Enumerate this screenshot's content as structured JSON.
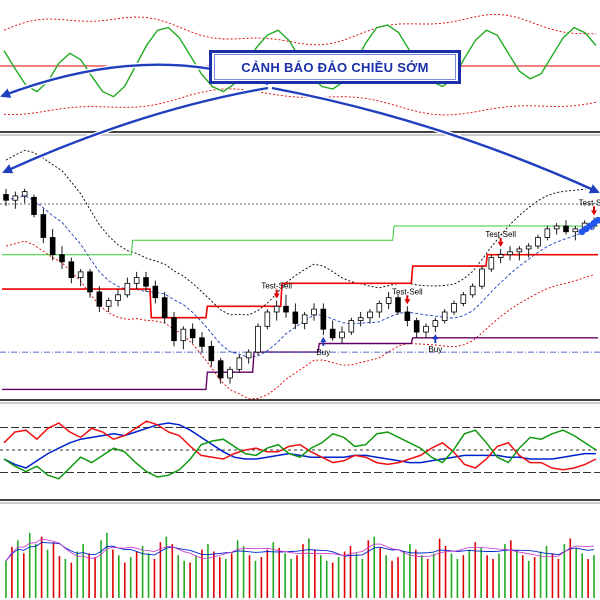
{
  "banner": {
    "text": "CẢNH BÁO ĐẢO CHIỀU SỚM"
  },
  "colors": {
    "oscillator_line": "#22aa22",
    "band_red": "#dd0000",
    "arrow_blue": "#1f3fbf",
    "bull_candle": "#ffffff",
    "bear_candle": "#000000",
    "support_line": "#ee0000",
    "resistance_line": "#33cc33",
    "trail_purple": "#660066",
    "osc_blue": "#0022cc",
    "osc_red": "#ee1111",
    "osc_green": "#119911",
    "vol_up": "#22aa22",
    "vol_down": "#dd0000"
  },
  "chart_data": [
    {
      "type": "line",
      "title": "",
      "series": [
        {
          "values": [
            62,
            48,
            35,
            30,
            38,
            52,
            60,
            55,
            42,
            30,
            26,
            34,
            50,
            66,
            78,
            80,
            72,
            58,
            44,
            34,
            30,
            36,
            50,
            64,
            74,
            78,
            70,
            56,
            42,
            34,
            32,
            38,
            52,
            68,
            80,
            82,
            76,
            62,
            48,
            38,
            34,
            40,
            56,
            70,
            78,
            74,
            60,
            46,
            40,
            44,
            58,
            72,
            80,
            76,
            66
          ]
        }
      ],
      "x_count": 55,
      "ylim": [
        0,
        100
      ],
      "band_upper": 78,
      "band_lower": 22,
      "midline": 50
    },
    {
      "type": "candlestick",
      "title": "",
      "candles": [
        {
          "o": 232,
          "h": 236,
          "l": 224,
          "c": 228
        },
        {
          "o": 228,
          "h": 234,
          "l": 222,
          "c": 231
        },
        {
          "o": 231,
          "h": 236,
          "l": 226,
          "c": 234
        },
        {
          "o": 230,
          "h": 232,
          "l": 216,
          "c": 218
        },
        {
          "o": 218,
          "h": 222,
          "l": 198,
          "c": 202
        },
        {
          "o": 202,
          "h": 208,
          "l": 186,
          "c": 190
        },
        {
          "o": 190,
          "h": 196,
          "l": 180,
          "c": 185
        },
        {
          "o": 185,
          "h": 188,
          "l": 170,
          "c": 174
        },
        {
          "o": 174,
          "h": 180,
          "l": 168,
          "c": 178
        },
        {
          "o": 178,
          "h": 180,
          "l": 160,
          "c": 164
        },
        {
          "o": 164,
          "h": 168,
          "l": 150,
          "c": 154
        },
        {
          "o": 154,
          "h": 160,
          "l": 150,
          "c": 158
        },
        {
          "o": 158,
          "h": 166,
          "l": 154,
          "c": 162
        },
        {
          "o": 162,
          "h": 174,
          "l": 160,
          "c": 170
        },
        {
          "o": 170,
          "h": 178,
          "l": 166,
          "c": 174
        },
        {
          "o": 174,
          "h": 178,
          "l": 164,
          "c": 168
        },
        {
          "o": 168,
          "h": 172,
          "l": 156,
          "c": 160
        },
        {
          "o": 160,
          "h": 164,
          "l": 142,
          "c": 146
        },
        {
          "o": 146,
          "h": 150,
          "l": 126,
          "c": 130
        },
        {
          "o": 130,
          "h": 140,
          "l": 124,
          "c": 138
        },
        {
          "o": 138,
          "h": 142,
          "l": 128,
          "c": 132
        },
        {
          "o": 132,
          "h": 136,
          "l": 122,
          "c": 126
        },
        {
          "o": 126,
          "h": 130,
          "l": 112,
          "c": 116
        },
        {
          "o": 116,
          "h": 118,
          "l": 100,
          "c": 104
        },
        {
          "o": 104,
          "h": 112,
          "l": 100,
          "c": 110
        },
        {
          "o": 110,
          "h": 120,
          "l": 108,
          "c": 118
        },
        {
          "o": 118,
          "h": 124,
          "l": 114,
          "c": 122
        },
        {
          "o": 122,
          "h": 142,
          "l": 120,
          "c": 140
        },
        {
          "o": 140,
          "h": 152,
          "l": 138,
          "c": 150
        },
        {
          "o": 150,
          "h": 158,
          "l": 144,
          "c": 154
        },
        {
          "o": 154,
          "h": 162,
          "l": 146,
          "c": 150
        },
        {
          "o": 150,
          "h": 156,
          "l": 138,
          "c": 142
        },
        {
          "o": 142,
          "h": 150,
          "l": 138,
          "c": 148
        },
        {
          "o": 148,
          "h": 156,
          "l": 144,
          "c": 152
        },
        {
          "o": 152,
          "h": 156,
          "l": 134,
          "c": 138
        },
        {
          "o": 138,
          "h": 144,
          "l": 130,
          "c": 132
        },
        {
          "o": 132,
          "h": 140,
          "l": 128,
          "c": 136
        },
        {
          "o": 136,
          "h": 146,
          "l": 134,
          "c": 144
        },
        {
          "o": 144,
          "h": 150,
          "l": 140,
          "c": 146
        },
        {
          "o": 146,
          "h": 152,
          "l": 142,
          "c": 150
        },
        {
          "o": 150,
          "h": 158,
          "l": 146,
          "c": 156
        },
        {
          "o": 156,
          "h": 164,
          "l": 152,
          "c": 160
        },
        {
          "o": 160,
          "h": 162,
          "l": 148,
          "c": 150
        },
        {
          "o": 150,
          "h": 154,
          "l": 140,
          "c": 144
        },
        {
          "o": 144,
          "h": 146,
          "l": 132,
          "c": 136
        },
        {
          "o": 136,
          "h": 142,
          "l": 132,
          "c": 140
        },
        {
          "o": 140,
          "h": 146,
          "l": 136,
          "c": 144
        },
        {
          "o": 144,
          "h": 152,
          "l": 142,
          "c": 150
        },
        {
          "o": 150,
          "h": 158,
          "l": 148,
          "c": 156
        },
        {
          "o": 156,
          "h": 164,
          "l": 154,
          "c": 162
        },
        {
          "o": 162,
          "h": 170,
          "l": 160,
          "c": 168
        },
        {
          "o": 168,
          "h": 182,
          "l": 166,
          "c": 180
        },
        {
          "o": 180,
          "h": 190,
          "l": 178,
          "c": 188
        },
        {
          "o": 188,
          "h": 194,
          "l": 184,
          "c": 190
        },
        {
          "o": 190,
          "h": 196,
          "l": 186,
          "c": 192
        },
        {
          "o": 192,
          "h": 196,
          "l": 186,
          "c": 194
        },
        {
          "o": 194,
          "h": 198,
          "l": 188,
          "c": 196
        },
        {
          "o": 196,
          "h": 204,
          "l": 194,
          "c": 202
        },
        {
          "o": 202,
          "h": 210,
          "l": 200,
          "c": 208
        },
        {
          "o": 208,
          "h": 212,
          "l": 204,
          "c": 210
        },
        {
          "o": 210,
          "h": 214,
          "l": 204,
          "c": 206
        },
        {
          "o": 206,
          "h": 210,
          "l": 200,
          "c": 208
        },
        {
          "o": 208,
          "h": 214,
          "l": 206,
          "c": 212
        },
        {
          "o": 212,
          "h": 216,
          "l": 208,
          "c": 210
        }
      ],
      "ylim": [
        90,
        270
      ],
      "signals": [
        {
          "index": 29,
          "label": "Test-Sell",
          "kind": "sell"
        },
        {
          "index": 34,
          "label": "Buy",
          "kind": "buy"
        },
        {
          "index": 43,
          "label": "Test-Sell",
          "kind": "sell"
        },
        {
          "index": 46,
          "label": "Buy",
          "kind": "buy"
        },
        {
          "index": 53,
          "label": "Test-Sell",
          "kind": "sell"
        },
        {
          "index": 63,
          "label": "Test-Sell",
          "kind": "sell"
        }
      ]
    },
    {
      "type": "line",
      "title": "",
      "x_count": 55,
      "ylim": [
        0,
        100
      ],
      "levels": [
        75,
        50,
        25
      ],
      "series": [
        {
          "values": [
            40,
            34,
            30,
            38,
            46,
            52,
            58,
            62,
            64,
            66,
            68,
            66,
            70,
            74,
            78,
            80,
            78,
            72,
            64,
            56,
            48,
            42,
            40,
            40,
            42,
            44,
            46,
            44,
            42,
            42,
            42,
            42,
            44,
            44,
            42,
            40,
            38,
            36,
            36,
            38,
            40,
            42,
            44,
            44,
            44,
            44,
            42,
            42,
            40,
            40,
            40,
            42,
            44,
            46,
            46
          ]
        },
        {
          "values": [
            58,
            70,
            72,
            62,
            74,
            80,
            70,
            64,
            74,
            70,
            62,
            66,
            74,
            82,
            78,
            70,
            66,
            54,
            44,
            42,
            40,
            46,
            50,
            52,
            48,
            48,
            54,
            56,
            48,
            42,
            36,
            38,
            44,
            42,
            36,
            34,
            36,
            40,
            44,
            52,
            58,
            48,
            34,
            30,
            40,
            54,
            58,
            44,
            36,
            36,
            30,
            28,
            30,
            34,
            40
          ]
        },
        {
          "values": [
            40,
            32,
            26,
            32,
            22,
            18,
            30,
            42,
            36,
            44,
            52,
            48,
            36,
            26,
            20,
            22,
            28,
            40,
            56,
            60,
            62,
            54,
            46,
            44,
            52,
            56,
            46,
            42,
            52,
            58,
            68,
            64,
            54,
            56,
            68,
            70,
            64,
            58,
            52,
            42,
            36,
            50,
            68,
            72,
            58,
            42,
            36,
            52,
            64,
            62,
            68,
            72,
            66,
            58,
            50
          ]
        }
      ]
    },
    {
      "type": "bar",
      "title": "",
      "x_count": 100,
      "ylim": [
        0,
        100
      ],
      "values": [
        40,
        55,
        62,
        48,
        70,
        58,
        66,
        52,
        60,
        45,
        42,
        38,
        50,
        58,
        48,
        44,
        62,
        70,
        52,
        46,
        38,
        44,
        50,
        56,
        48,
        42,
        60,
        66,
        58,
        46,
        40,
        38,
        46,
        52,
        58,
        50,
        44,
        42,
        48,
        62,
        56,
        46,
        40,
        44,
        52,
        60,
        54,
        48,
        42,
        46,
        58,
        64,
        52,
        46,
        40,
        38,
        44,
        50,
        56,
        48,
        42,
        62,
        66,
        54,
        46,
        40,
        44,
        50,
        58,
        52,
        46,
        42,
        48,
        64,
        56,
        48,
        42,
        46,
        52,
        60,
        54,
        46,
        42,
        48,
        58,
        62,
        52,
        46,
        40,
        44,
        50,
        56,
        48,
        42,
        58,
        64,
        54,
        48,
        42,
        46
      ],
      "up": [
        1,
        0,
        1,
        0,
        1,
        1,
        0,
        1,
        0,
        0,
        1,
        0,
        1,
        1,
        0,
        0,
        1,
        1,
        0,
        1,
        0,
        1,
        0,
        1,
        1,
        0,
        0,
        1,
        0,
        1,
        1,
        0,
        1,
        0,
        1,
        0,
        0,
        1,
        0,
        1,
        1,
        0,
        1,
        0,
        0,
        1,
        0,
        1,
        1,
        0,
        0,
        1,
        0,
        1,
        1,
        0,
        1,
        0,
        0,
        1,
        1,
        0,
        1,
        0,
        1,
        0,
        0,
        1,
        1,
        0,
        1,
        0,
        1,
        0,
        0,
        1,
        1,
        0,
        1,
        0,
        1,
        0,
        0,
        1,
        1,
        0,
        1,
        0,
        1,
        0,
        1,
        1,
        0,
        0,
        1,
        0,
        1,
        1,
        0,
        1
      ]
    }
  ]
}
